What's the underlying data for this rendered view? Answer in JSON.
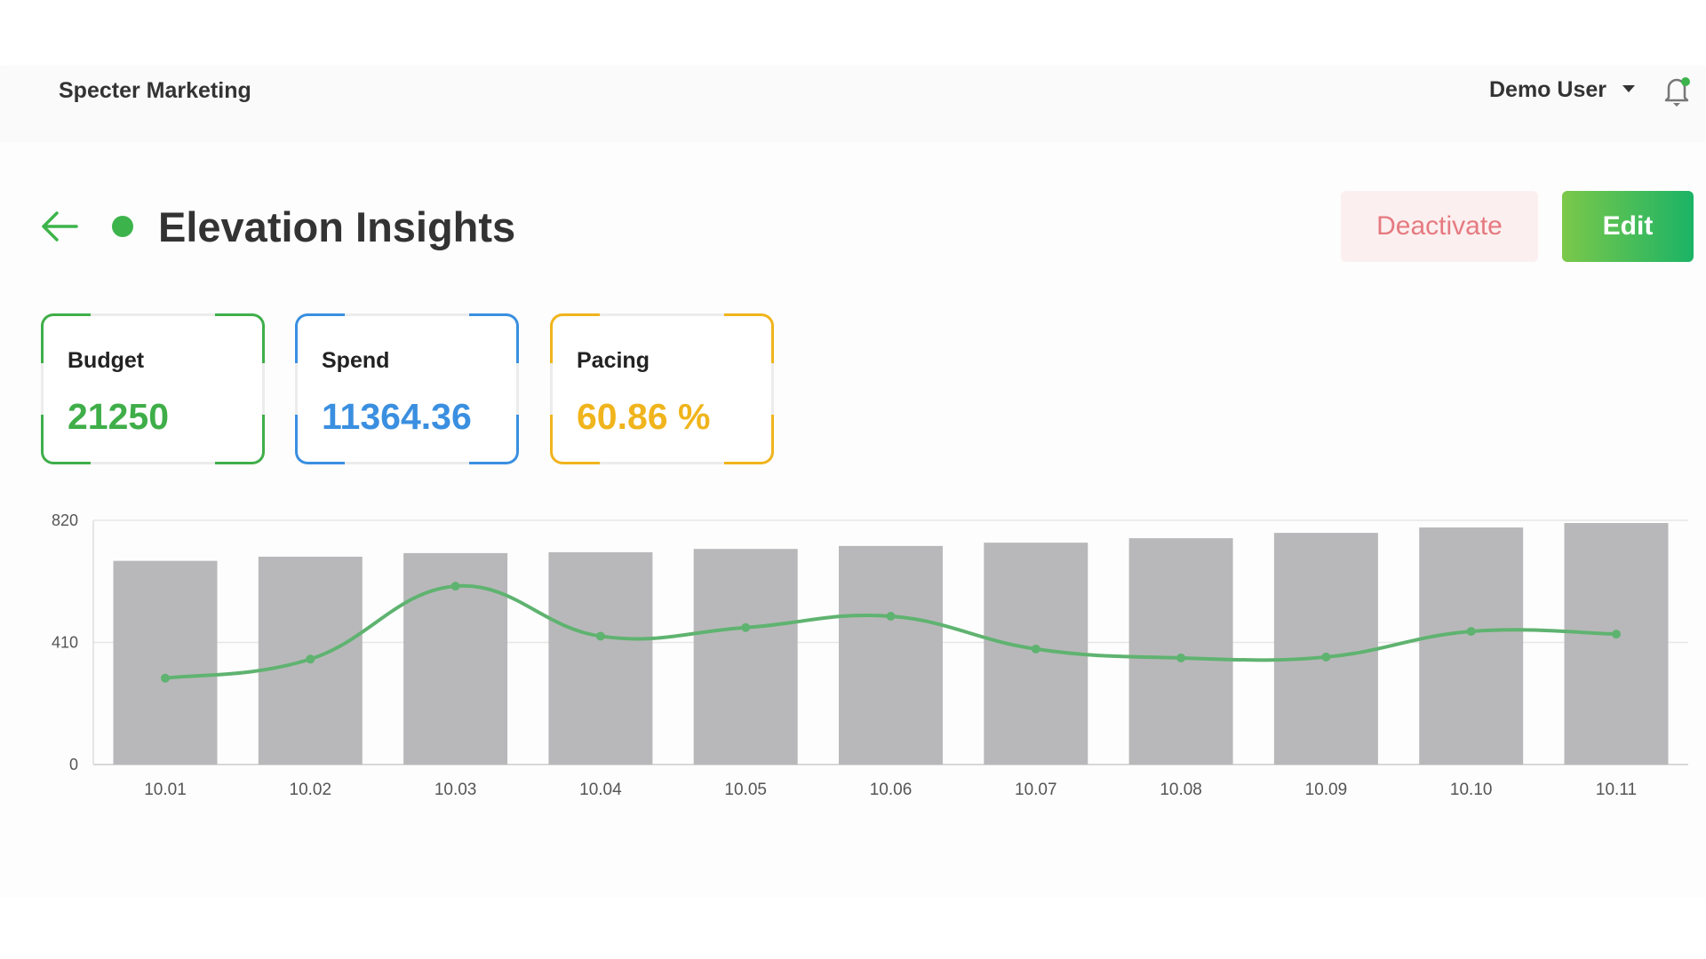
{
  "header": {
    "brand": "Specter Marketing",
    "user": "Demo User",
    "icons": {
      "caret": "caret-down-icon",
      "bell": "bell-icon"
    }
  },
  "page": {
    "title": "Elevation Insights",
    "status_color": "#3cb44b",
    "deactivate_label": "Deactivate",
    "edit_label": "Edit"
  },
  "cards": [
    {
      "label": "Budget",
      "value": "21250",
      "color": "#3fae49"
    },
    {
      "label": "Spend",
      "value": "11364.36",
      "color": "#3a8fe0"
    },
    {
      "label": "Pacing",
      "value": "60.86 %",
      "color": "#f0b41c"
    }
  ],
  "chart_data": {
    "type": "bar",
    "categories": [
      "10.01",
      "10.02",
      "10.03",
      "10.04",
      "10.05",
      "10.06",
      "10.07",
      "10.08",
      "10.09",
      "10.10",
      "10.11"
    ],
    "yticks": [
      "0",
      "410",
      "820"
    ],
    "ylim": [
      0,
      820
    ],
    "grid": true,
    "series": [
      {
        "name": "bars",
        "type": "bar",
        "color": "#b8b8ba",
        "values": [
          684,
          698,
          710,
          713,
          724,
          734,
          745,
          760,
          778,
          796,
          811
        ]
      },
      {
        "name": "line",
        "type": "line",
        "color": "#5fb370",
        "values": [
          290,
          354,
          599,
          431,
          460,
          498,
          388,
          358,
          361,
          447,
          438
        ]
      }
    ]
  }
}
